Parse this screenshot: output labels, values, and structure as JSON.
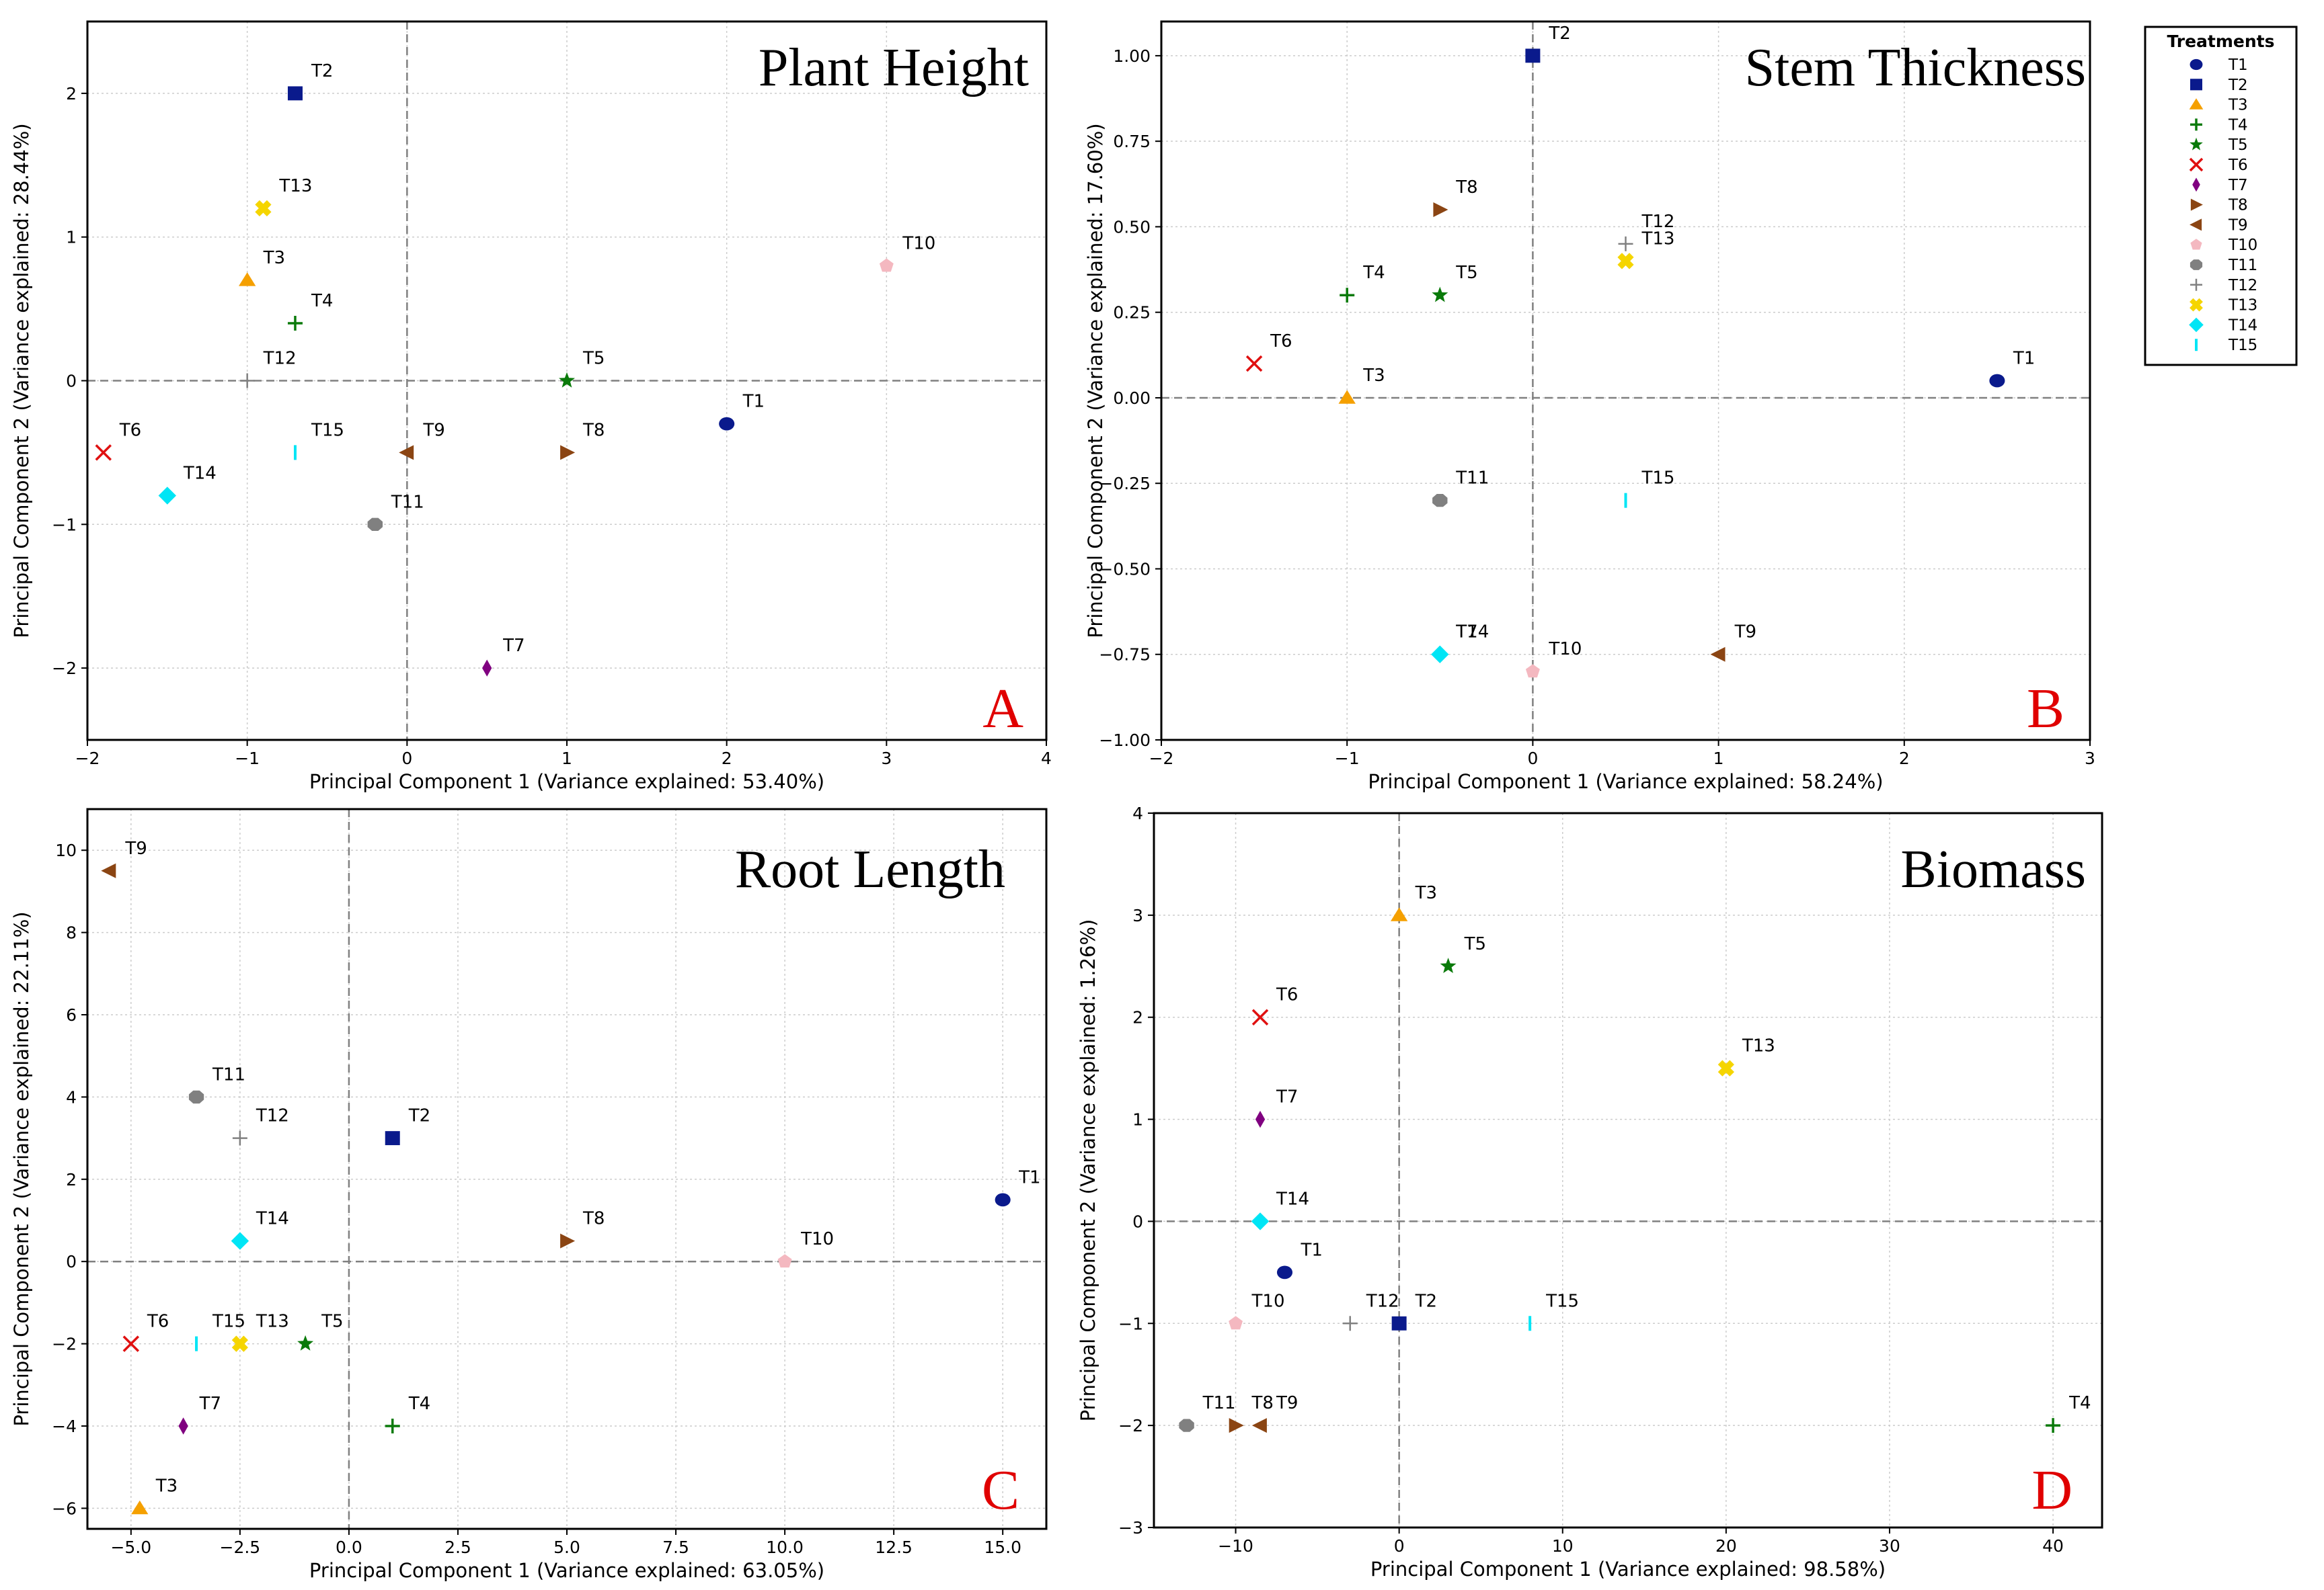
{
  "legend": {
    "title": "Treatments",
    "entries": [
      {
        "name": "T1",
        "color": "#0a1a8c",
        "marker": "circle"
      },
      {
        "name": "T2",
        "color": "#0a1a8c",
        "marker": "square"
      },
      {
        "name": "T3",
        "color": "#f5a000",
        "marker": "triangle-up"
      },
      {
        "name": "T4",
        "color": "#0a7a0a",
        "marker": "plus"
      },
      {
        "name": "T5",
        "color": "#0a7a0a",
        "marker": "star"
      },
      {
        "name": "T6",
        "color": "#e01010",
        "marker": "x"
      },
      {
        "name": "T7",
        "color": "#800080",
        "marker": "diamond-thin"
      },
      {
        "name": "T8",
        "color": "#8b4513",
        "marker": "triangle-right"
      },
      {
        "name": "T9",
        "color": "#8b4513",
        "marker": "triangle-left"
      },
      {
        "name": "T10",
        "color": "#f4b8c0",
        "marker": "pentagon"
      },
      {
        "name": "T11",
        "color": "#808080",
        "marker": "octagon"
      },
      {
        "name": "T12",
        "color": "#808080",
        "marker": "plus-thin"
      },
      {
        "name": "T13",
        "color": "#f5d500",
        "marker": "x-filled"
      },
      {
        "name": "T14",
        "color": "#00e5f5",
        "marker": "diamond"
      },
      {
        "name": "T15",
        "color": "#00e5f5",
        "marker": "vline"
      }
    ]
  },
  "chart_data": [
    {
      "type": "scatter",
      "title": "Plant Height",
      "panel_letter": "A",
      "xlabel": "Principal Component 1 (Variance explained: 53.40%)",
      "ylabel": "Principal Component 2 (Variance explained: 28.44%)",
      "xlim": [
        -2,
        4
      ],
      "ylim": [
        -2.5,
        2.5
      ],
      "xticks": [
        -2,
        -1,
        0,
        1,
        2,
        3,
        4
      ],
      "xtick_labels": [
        "−2",
        "−1",
        "0",
        "1",
        "2",
        "3",
        "4"
      ],
      "yticks": [
        -2,
        -1,
        0,
        1,
        2
      ],
      "ytick_labels": [
        "−2",
        "−1",
        "0",
        "1",
        "2"
      ],
      "grid": true,
      "points": [
        {
          "name": "T1",
          "x": 2.0,
          "y": -0.3
        },
        {
          "name": "T2",
          "x": -0.7,
          "y": 2.0
        },
        {
          "name": "T3",
          "x": -1.0,
          "y": 0.7
        },
        {
          "name": "T4",
          "x": -0.7,
          "y": 0.4
        },
        {
          "name": "T5",
          "x": 1.0,
          "y": 0.0
        },
        {
          "name": "T6",
          "x": -1.9,
          "y": -0.5
        },
        {
          "name": "T7",
          "x": 0.5,
          "y": -2.0
        },
        {
          "name": "T8",
          "x": 1.0,
          "y": -0.5
        },
        {
          "name": "T9",
          "x": 0.0,
          "y": -0.5
        },
        {
          "name": "T10",
          "x": 3.0,
          "y": 0.8
        },
        {
          "name": "T11",
          "x": -0.2,
          "y": -1.0
        },
        {
          "name": "T12",
          "x": -1.0,
          "y": 0.0
        },
        {
          "name": "T13",
          "x": -0.9,
          "y": 1.2
        },
        {
          "name": "T14",
          "x": -1.5,
          "y": -0.8
        },
        {
          "name": "T15",
          "x": -0.7,
          "y": -0.5
        }
      ]
    },
    {
      "type": "scatter",
      "title": "Stem Thickness",
      "panel_letter": "B",
      "xlabel": "Principal Component 1 (Variance explained: 58.24%)",
      "ylabel": "Principal Component 2 (Variance explained: 17.60%)",
      "xlim": [
        -2,
        3
      ],
      "ylim": [
        -1.0,
        1.1
      ],
      "xticks": [
        -2,
        -1,
        0,
        1,
        2,
        3
      ],
      "xtick_labels": [
        "−2",
        "−1",
        "0",
        "1",
        "2",
        "3"
      ],
      "yticks": [
        -1.0,
        -0.75,
        -0.5,
        -0.25,
        0.0,
        0.25,
        0.5,
        0.75,
        1.0
      ],
      "ytick_labels": [
        "−1.00",
        "−0.75",
        "−0.50",
        "−0.25",
        "0.00",
        "0.25",
        "0.50",
        "0.75",
        "1.00"
      ],
      "grid": true,
      "points": [
        {
          "name": "T1",
          "x": 2.5,
          "y": 0.05
        },
        {
          "name": "T2",
          "x": 0.0,
          "y": 1.0
        },
        {
          "name": "T3",
          "x": -1.0,
          "y": 0.0
        },
        {
          "name": "T4",
          "x": -1.0,
          "y": 0.3
        },
        {
          "name": "T5",
          "x": -0.5,
          "y": 0.3
        },
        {
          "name": "T6",
          "x": -1.5,
          "y": 0.1
        },
        {
          "name": "T7",
          "x": -0.5,
          "y": -0.75
        },
        {
          "name": "T8",
          "x": -0.5,
          "y": 0.55
        },
        {
          "name": "T9",
          "x": 1.0,
          "y": -0.75
        },
        {
          "name": "T10",
          "x": 0.0,
          "y": -0.8
        },
        {
          "name": "T11",
          "x": -0.5,
          "y": -0.3
        },
        {
          "name": "T12",
          "x": 0.5,
          "y": 0.45
        },
        {
          "name": "T13",
          "x": 0.5,
          "y": 0.4
        },
        {
          "name": "T14",
          "x": -0.5,
          "y": -0.75
        },
        {
          "name": "T15",
          "x": 0.5,
          "y": -0.3
        }
      ]
    },
    {
      "type": "scatter",
      "title": "Root Length",
      "panel_letter": "C",
      "xlabel": "Principal Component 1 (Variance explained: 63.05%)",
      "ylabel": "Principal Component 2 (Variance explained: 22.11%)",
      "xlim": [
        -6,
        16
      ],
      "ylim": [
        -6.5,
        11
      ],
      "xticks": [
        -5.0,
        -2.5,
        0.0,
        2.5,
        5.0,
        7.5,
        10.0,
        12.5,
        15.0
      ],
      "xtick_labels": [
        "−5.0",
        "−2.5",
        "0.0",
        "2.5",
        "5.0",
        "7.5",
        "10.0",
        "12.5",
        "15.0"
      ],
      "yticks": [
        -6,
        -4,
        -2,
        0,
        2,
        4,
        6,
        8,
        10
      ],
      "ytick_labels": [
        "−6",
        "−4",
        "−2",
        "0",
        "2",
        "4",
        "6",
        "8",
        "10"
      ],
      "grid": true,
      "points": [
        {
          "name": "T1",
          "x": 15.0,
          "y": 1.5
        },
        {
          "name": "T2",
          "x": 1.0,
          "y": 3.0
        },
        {
          "name": "T3",
          "x": -4.8,
          "y": -6.0
        },
        {
          "name": "T4",
          "x": 1.0,
          "y": -4.0
        },
        {
          "name": "T5",
          "x": -1.0,
          "y": -2.0
        },
        {
          "name": "T6",
          "x": -5.0,
          "y": -2.0
        },
        {
          "name": "T7",
          "x": -3.8,
          "y": -4.0
        },
        {
          "name": "T8",
          "x": 5.0,
          "y": 0.5
        },
        {
          "name": "T9",
          "x": -5.5,
          "y": 9.5
        },
        {
          "name": "T10",
          "x": 10.0,
          "y": 0.0
        },
        {
          "name": "T11",
          "x": -3.5,
          "y": 4.0
        },
        {
          "name": "T12",
          "x": -2.5,
          "y": 3.0
        },
        {
          "name": "T13",
          "x": -2.5,
          "y": -2.0
        },
        {
          "name": "T14",
          "x": -2.5,
          "y": 0.5
        },
        {
          "name": "T15",
          "x": -3.5,
          "y": -2.0
        }
      ]
    },
    {
      "type": "scatter",
      "title": "Biomass",
      "panel_letter": "D",
      "xlabel": "Principal Component 1 (Variance explained: 98.58%)",
      "ylabel": "Principal Component 2 (Variance explained: 1.26%)",
      "xlim": [
        -15,
        43
      ],
      "ylim": [
        -3,
        4
      ],
      "xticks": [
        -10,
        0,
        10,
        20,
        30,
        40
      ],
      "xtick_labels": [
        "−10",
        "0",
        "10",
        "20",
        "30",
        "40"
      ],
      "yticks": [
        -3,
        -2,
        -1,
        0,
        1,
        2,
        3,
        4
      ],
      "ytick_labels": [
        "−3",
        "−2",
        "−1",
        "0",
        "1",
        "2",
        "3",
        "4"
      ],
      "grid": true,
      "points": [
        {
          "name": "T1",
          "x": -7.0,
          "y": -0.5
        },
        {
          "name": "T2",
          "x": 0.0,
          "y": -1.0
        },
        {
          "name": "T3",
          "x": 0.0,
          "y": 3.0
        },
        {
          "name": "T4",
          "x": 40.0,
          "y": -2.0
        },
        {
          "name": "T5",
          "x": 3.0,
          "y": 2.5
        },
        {
          "name": "T6",
          "x": -8.5,
          "y": 2.0
        },
        {
          "name": "T7",
          "x": -8.5,
          "y": 1.0
        },
        {
          "name": "T8",
          "x": -10.0,
          "y": -2.0
        },
        {
          "name": "T9",
          "x": -8.5,
          "y": -2.0
        },
        {
          "name": "T10",
          "x": -10.0,
          "y": -1.0
        },
        {
          "name": "T11",
          "x": -13.0,
          "y": -2.0
        },
        {
          "name": "T12",
          "x": -3.0,
          "y": -1.0
        },
        {
          "name": "T13",
          "x": 20.0,
          "y": 1.5
        },
        {
          "name": "T14",
          "x": -8.5,
          "y": 0.0
        },
        {
          "name": "T15",
          "x": 8.0,
          "y": -1.0
        }
      ]
    }
  ]
}
